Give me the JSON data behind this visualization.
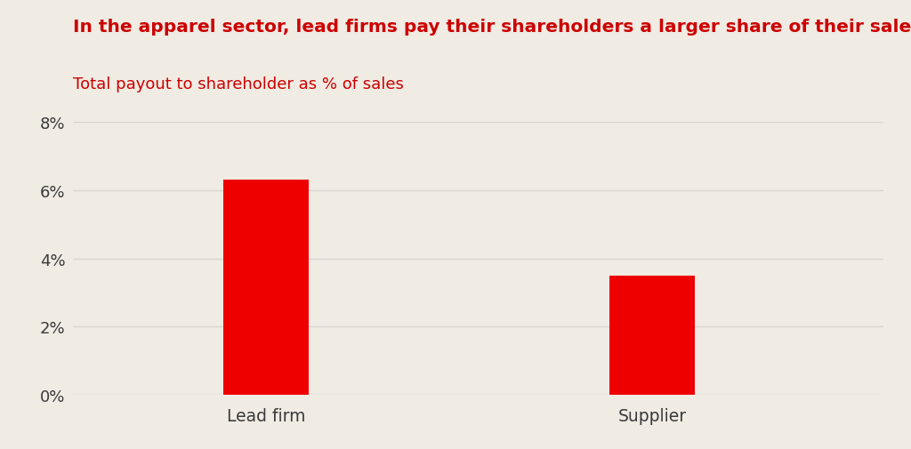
{
  "title": "In the apparel sector, lead firms pay their shareholders a larger share of their sales",
  "subtitle": "Total payout to shareholder as % of sales",
  "categories": [
    "Lead firm",
    "Supplier"
  ],
  "values": [
    6.3,
    3.5
  ],
  "bar_color": "#ee0000",
  "title_color": "#cc0000",
  "subtitle_color": "#cc0000",
  "tick_label_color": "#3a3a3a",
  "xlabel_color": "#3a3a3a",
  "background_color": "#f0ebe3",
  "grid_color": "#d8d3cc",
  "ylim": [
    0,
    8
  ],
  "yticks": [
    0,
    2,
    4,
    6,
    8
  ],
  "ytick_labels": [
    "0%",
    "2%",
    "4%",
    "6%",
    "8%"
  ],
  "title_fontsize": 14.5,
  "subtitle_fontsize": 13,
  "tick_fontsize": 13,
  "xlabel_fontsize": 13.5,
  "bar_width": 0.22
}
